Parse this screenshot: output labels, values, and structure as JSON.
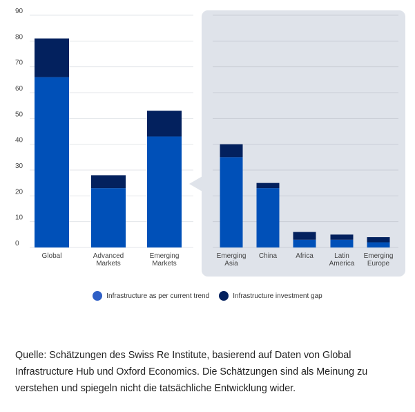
{
  "chart_data": {
    "type": "bar",
    "stacked": true,
    "ylim": [
      0,
      90
    ],
    "yticks": [
      0,
      10,
      20,
      30,
      40,
      50,
      60,
      70,
      80,
      90
    ],
    "grid": true,
    "categories": [
      {
        "key": "global",
        "label": [
          "Global"
        ],
        "panel": "main"
      },
      {
        "key": "advanced-markets",
        "label": [
          "Advanced",
          "Markets"
        ],
        "panel": "main"
      },
      {
        "key": "emerging-markets",
        "label": [
          "Emerging",
          "Markets"
        ],
        "panel": "main"
      },
      {
        "key": "emerging-asia",
        "label": [
          "Emerging",
          "Asia"
        ],
        "panel": "detail"
      },
      {
        "key": "china",
        "label": [
          "China"
        ],
        "panel": "detail"
      },
      {
        "key": "africa",
        "label": [
          "Africa"
        ],
        "panel": "detail"
      },
      {
        "key": "latin-america",
        "label": [
          "Latin",
          "America"
        ],
        "panel": "detail"
      },
      {
        "key": "emerging-europe",
        "label": [
          "Emerging",
          "Europe"
        ],
        "panel": "detail"
      }
    ],
    "series": [
      {
        "name": "Infrastructure as per current trend",
        "color": "#0050b8",
        "values": [
          66,
          23,
          43,
          35,
          23,
          3,
          3,
          2
        ]
      },
      {
        "name": "Infrastructure investment gap",
        "color": "#03215e",
        "values": [
          15,
          5,
          10,
          5,
          2,
          3,
          2,
          2
        ]
      }
    ]
  },
  "colors": {
    "panel_bg": "#dfe3ea",
    "grid": "#e3e6ea",
    "trend": "#0050b8",
    "gap": "#03215e"
  },
  "source_text": "Quelle: Schätzungen des Swiss Re Institute, basierend auf Daten von Global Infrastructure Hub und Oxford Economics. Die Schätzungen sind als Meinung zu verstehen und spiegeln nicht die tatsächliche Entwicklung wider."
}
